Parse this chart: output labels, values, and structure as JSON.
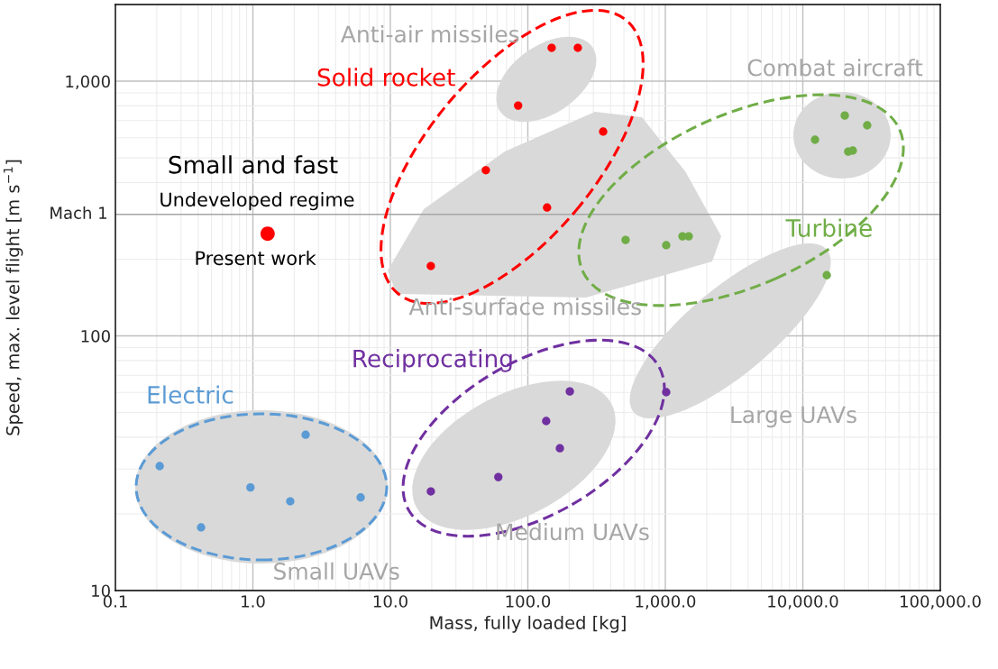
{
  "chart_data": {
    "type": "scatter",
    "xlabel": "Mass, fully loaded [kg]",
    "ylabel": "Speed, max. level flight [m s$^{−1}$]",
    "log": "xy",
    "xlim": [
      0.1,
      100000
    ],
    "ylim": [
      10,
      2000
    ],
    "xticks": [
      0.1,
      {
        "value": 1,
        "label": "1.0"
      },
      {
        "value": 10,
        "label": "10.0"
      },
      {
        "value": 100,
        "label": "100.0"
      },
      {
        "value": 1000,
        "label": "1,000.0"
      },
      {
        "value": 10000,
        "label": "10,000.0"
      },
      {
        "value": 100000,
        "label": "100,000.0"
      }
    ],
    "yticks": [
      10,
      100,
      {
        "value": 1000,
        "label": "1,000"
      }
    ],
    "grid": true,
    "marker": "circle",
    "legend": false,
    "ref_lines": [
      {
        "axis": "y",
        "value": 300,
        "label": "Mach 1",
        "color": "#a6a6a6"
      }
    ],
    "series": [
      {
        "name": "Electric",
        "color": "#5b9bd5",
        "x": [
          0.21,
          0.42,
          0.96,
          1.87,
          2.42,
          6.08
        ],
        "values": [
          30.8,
          17.7,
          25.4,
          22.4,
          40.9,
          23.2
        ]
      },
      {
        "name": "Reciprocating",
        "color": "#7030a0",
        "x": [
          19.7,
          61,
          136,
          171,
          202,
          1015
        ],
        "values": [
          24.5,
          27.9,
          46.3,
          36.2,
          60.5,
          60.1
        ]
      },
      {
        "name": "Solid rocket",
        "color": "#ff0000",
        "x": [
          19.7,
          49.5,
          85,
          138,
          149,
          231,
          353
        ],
        "values": [
          188,
          447,
          802,
          319,
          1352,
          1352,
          634
        ]
      },
      {
        "name": "Turbine",
        "color": "#70ad47",
        "x": [
          514,
          1015,
          1333,
          1480,
          12270,
          14940,
          20200,
          21400,
          23100,
          29400
        ],
        "values": [
          238,
          227,
          246,
          246,
          589,
          173,
          733,
          529,
          534,
          671
        ]
      },
      {
        "color": "#ff0000",
        "x": [
          1.28
        ],
        "values": [
          252
        ]
      }
    ],
    "annotations": [
      "Anti-air missiles",
      "Combat aircraft",
      "Anti-surface missiles",
      "Large UAVs",
      "Medium UAVs",
      "Small UAVs",
      "Small and fast",
      "Undeveloped regime",
      "Present work"
    ]
  }
}
